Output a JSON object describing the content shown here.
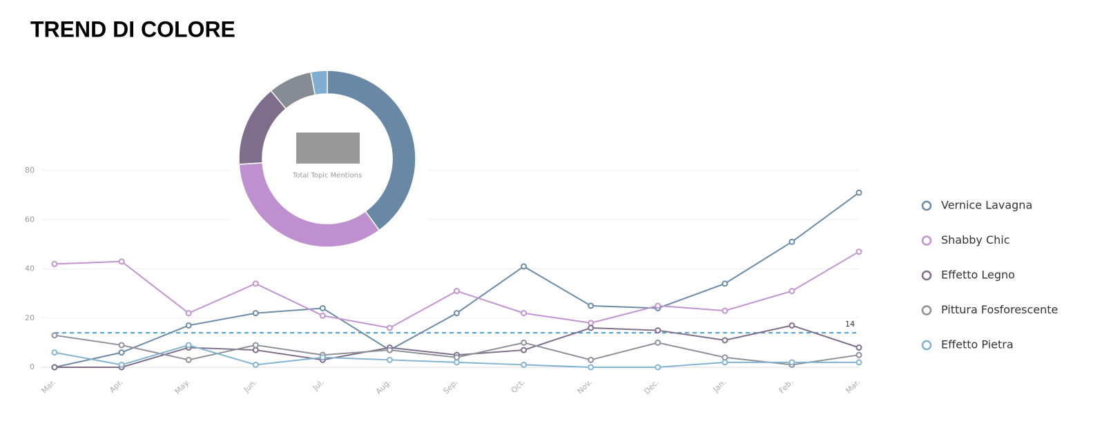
{
  "chart_data": [
    {
      "type": "line",
      "title": "TREND DI COLORE",
      "categories": [
        "Mar.",
        "Apr.",
        "May.",
        "Jun.",
        "Jul.",
        "Aug.",
        "Sep.",
        "Oct.",
        "Nov.",
        "Dec.",
        "Jan.",
        "Feb.",
        "Mar."
      ],
      "series": [
        {
          "name": "Vernice Lavagna",
          "color": "#6a8aa6",
          "values": [
            0,
            6,
            17,
            22,
            24,
            7,
            22,
            41,
            25,
            24,
            34,
            51,
            71
          ]
        },
        {
          "name": "Shabby Chic",
          "color": "#c293d1",
          "values": [
            42,
            43,
            22,
            34,
            21,
            16,
            31,
            22,
            18,
            25,
            23,
            31,
            47
          ]
        },
        {
          "name": "Effetto Legno",
          "color": "#7f6d8c",
          "values": [
            0,
            0,
            8,
            7,
            3,
            8,
            5,
            7,
            16,
            15,
            11,
            17,
            8
          ]
        },
        {
          "name": "Pittura Fosforescente",
          "color": "#8c9099",
          "values": [
            13,
            9,
            3,
            9,
            5,
            7,
            4,
            10,
            3,
            10,
            4,
            1,
            5
          ]
        },
        {
          "name": "Effetto Pietra",
          "color": "#82b3d1",
          "values": [
            6,
            1,
            9,
            1,
            4,
            3,
            2,
            1,
            0,
            0,
            2,
            2,
            2
          ]
        }
      ],
      "reference_line": 14,
      "ylim": [
        0,
        80
      ],
      "yticks": [
        0,
        20,
        40,
        60,
        80
      ],
      "grid": true,
      "legend": "right"
    },
    {
      "type": "pie",
      "center_label": "Total Topic Mentions",
      "values": [
        40,
        34,
        15,
        8,
        3
      ],
      "colors": [
        "#6888a5",
        "#bf90cf",
        "#7f6d8c",
        "#868c96",
        "#80aed0"
      ]
    }
  ]
}
